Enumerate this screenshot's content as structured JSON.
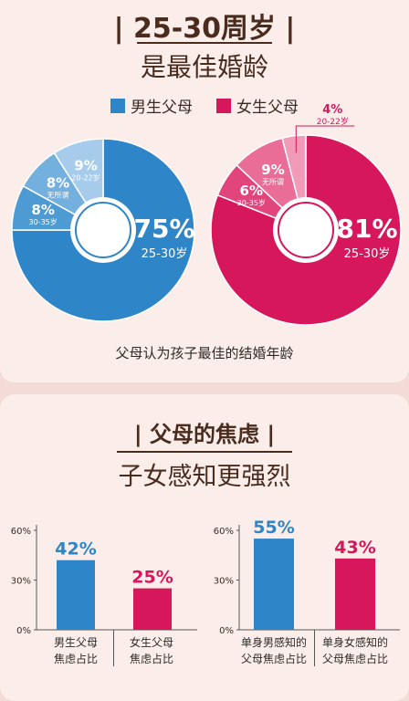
{
  "section1": {
    "title_main": "25-30周岁",
    "title_sub": "是最佳婚龄",
    "legend": [
      {
        "label": "男生父母",
        "color": "#2e86c8"
      },
      {
        "label": "女生父母",
        "color": "#d6175c"
      }
    ],
    "caption": "父母认为孩子最佳的结婚年龄"
  },
  "section2": {
    "title_main": "父母的焦虑",
    "title_sub": "子女感知更强烈"
  },
  "chart_data": [
    {
      "type": "pie",
      "series_name": "男生父母",
      "slices": [
        {
          "value": 75,
          "pct_label": "75%",
          "label": "25-30岁"
        },
        {
          "value": 8,
          "pct_label": "8%",
          "label": "30-35岁"
        },
        {
          "value": 8,
          "pct_label": "8%",
          "label": "无所谓"
        },
        {
          "value": 9,
          "pct_label": "9%",
          "label": "20-22岁"
        }
      ],
      "colors": [
        "#2e86c8",
        "#4e9ad3",
        "#73b0de",
        "#a7cceb"
      ]
    },
    {
      "type": "pie",
      "series_name": "女生父母",
      "slices": [
        {
          "value": 81,
          "pct_label": "81%",
          "label": "25-30岁"
        },
        {
          "value": 6,
          "pct_label": "6%",
          "label": "30-35岁"
        },
        {
          "value": 9,
          "pct_label": "9%",
          "label": "无所谓"
        },
        {
          "value": 4,
          "pct_label": "4%",
          "label": "20-22岁"
        }
      ],
      "colors": [
        "#d6175c",
        "#e2447c",
        "#ea6d98",
        "#f19bb8"
      ]
    },
    {
      "type": "bar",
      "categories": [
        "男生父母\n焦虑占比",
        "女生父母\n焦虑占比"
      ],
      "values": [
        42,
        25
      ],
      "value_labels": [
        "42%",
        "25%"
      ],
      "colors": [
        "#2e86c8",
        "#d6175c"
      ],
      "yticks": [
        "0%",
        "30%",
        "60%"
      ],
      "ylim": [
        0,
        60
      ]
    },
    {
      "type": "bar",
      "categories": [
        "单身男感知的\n父母焦虑占比",
        "单身女感知的\n父母焦虑占比"
      ],
      "values": [
        55,
        43
      ],
      "value_labels": [
        "55%",
        "43%"
      ],
      "colors": [
        "#2e86c8",
        "#d6175c"
      ],
      "yticks": [
        "0%",
        "30%",
        "60%"
      ],
      "ylim": [
        0,
        60
      ]
    }
  ]
}
